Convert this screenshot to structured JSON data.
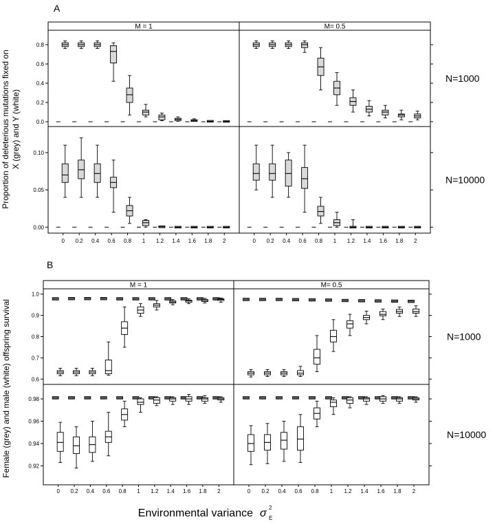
{
  "panels": {
    "a": {
      "letter": "A",
      "ylabel_line1": "Proportion of deleterious mutations fixed on",
      "ylabel_line2": "X (grey) and Y (white)"
    },
    "b": {
      "letter": "B",
      "ylabel": "Female (grey) and male (white) offspring survival"
    }
  },
  "x_axis": {
    "label": "Environmental variance",
    "symbol": "σ",
    "sub": "E",
    "sup": "2"
  },
  "chart_data": [
    {
      "type": "box",
      "panel": "A",
      "description_free": true,
      "strips": [
        "M = 1",
        "M= 0.5"
      ],
      "rows": [
        "N=1000",
        "N=10000"
      ],
      "categories": [
        "0",
        "0.2",
        "0.4",
        "0.6",
        "0.8",
        "1",
        "1.2",
        "1.4",
        "1.6",
        "1.8",
        "2"
      ],
      "y_ticks": {
        "N=1000": [
          "0.0",
          "0.2",
          "0.4",
          "0.6",
          "0.8"
        ],
        "N=10000": [
          "0.00",
          "0.05",
          "0.10"
        ]
      },
      "ylim": {
        "N=1000": [
          -0.05,
          0.95
        ],
        "N=10000": [
          -0.008,
          0.135
        ]
      },
      "facets": [
        {
          "strip": "M = 1",
          "row": "N=1000",
          "grey": [
            [
              0.76,
              0.78,
              0.8,
              0.82,
              0.84
            ],
            [
              0.76,
              0.78,
              0.8,
              0.82,
              0.84
            ],
            [
              0.76,
              0.78,
              0.8,
              0.82,
              0.84
            ],
            [
              0.42,
              0.61,
              0.73,
              0.79,
              0.82
            ],
            [
              0.07,
              0.2,
              0.28,
              0.35,
              0.48
            ],
            [
              0.05,
              0.07,
              0.1,
              0.12,
              0.18
            ],
            [
              0.01,
              0.02,
              0.05,
              0.07,
              0.09
            ],
            [
              0.005,
              0.012,
              0.025,
              0.035,
              0.05
            ],
            [
              0.003,
              0.006,
              0.012,
              0.018,
              0.03
            ],
            [
              0.0,
              0.002,
              0.004,
              0.007,
              0.01
            ],
            [
              0.0,
              0.001,
              0.003,
              0.005,
              0.008
            ]
          ],
          "white": [
            0,
            0,
            0,
            0,
            0,
            0,
            0,
            0,
            0,
            0,
            0
          ]
        },
        {
          "strip": "M= 0.5",
          "row": "N=1000",
          "grey": [
            [
              0.76,
              0.78,
              0.8,
              0.82,
              0.84
            ],
            [
              0.76,
              0.78,
              0.8,
              0.82,
              0.84
            ],
            [
              0.76,
              0.78,
              0.8,
              0.82,
              0.84
            ],
            [
              0.72,
              0.77,
              0.8,
              0.82,
              0.84
            ],
            [
              0.33,
              0.48,
              0.57,
              0.66,
              0.77
            ],
            [
              0.17,
              0.28,
              0.35,
              0.42,
              0.51
            ],
            [
              0.1,
              0.17,
              0.21,
              0.25,
              0.33
            ],
            [
              0.06,
              0.1,
              0.13,
              0.16,
              0.22
            ],
            [
              0.04,
              0.07,
              0.1,
              0.12,
              0.17
            ],
            [
              0.02,
              0.05,
              0.07,
              0.08,
              0.12
            ],
            [
              0.02,
              0.04,
              0.06,
              0.08,
              0.11
            ]
          ],
          "white": [
            0,
            0,
            0,
            0,
            0,
            0,
            0,
            0,
            0,
            0,
            0
          ]
        },
        {
          "strip": "M = 1",
          "row": "N=10000",
          "grey": [
            [
              0.04,
              0.06,
              0.07,
              0.085,
              0.11
            ],
            [
              0.04,
              0.065,
              0.077,
              0.09,
              0.12
            ],
            [
              0.04,
              0.06,
              0.072,
              0.085,
              0.11
            ],
            [
              0.02,
              0.053,
              0.06,
              0.067,
              0.09
            ],
            [
              0.005,
              0.015,
              0.022,
              0.029,
              0.04
            ],
            [
              0.0,
              0.002,
              0.006,
              0.009,
              0.01
            ],
            [
              0.0,
              0.0,
              0.0005,
              0.001,
              0.001
            ],
            [
              0,
              0,
              0,
              0,
              0
            ],
            [
              0,
              0,
              0,
              0,
              0
            ],
            [
              0,
              0,
              0,
              0,
              0
            ],
            [
              0,
              0,
              0,
              0,
              0
            ]
          ],
          "white": [
            0,
            0,
            0,
            0,
            0,
            0,
            0,
            0,
            0,
            0,
            0
          ]
        },
        {
          "strip": "M= 0.5",
          "row": "N=10000",
          "grey": [
            [
              0.05,
              0.063,
              0.072,
              0.085,
              0.11
            ],
            [
              0.04,
              0.063,
              0.072,
              0.085,
              0.11
            ],
            [
              0.04,
              0.055,
              0.072,
              0.09,
              0.1
            ],
            [
              0.02,
              0.052,
              0.065,
              0.08,
              0.11
            ],
            [
              0.005,
              0.015,
              0.021,
              0.028,
              0.04
            ],
            [
              0.0,
              0.002,
              0.006,
              0.01,
              0.02
            ],
            [
              0.0,
              0.0,
              0.0,
              0.0,
              0.01
            ],
            [
              0,
              0,
              0,
              0,
              0
            ],
            [
              0,
              0,
              0,
              0,
              0
            ],
            [
              0,
              0,
              0,
              0,
              0
            ],
            [
              0,
              0,
              0,
              0,
              0
            ]
          ],
          "white": [
            0,
            0,
            0,
            0,
            0,
            0,
            0,
            0,
            0,
            0,
            0
          ]
        }
      ]
    },
    {
      "type": "box",
      "panel": "B",
      "strips": [
        "M = 1",
        "M= 0.5"
      ],
      "rows": [
        "N=1000",
        "N=10000"
      ],
      "categories": [
        "0",
        "0.2",
        "0.4",
        "0.6",
        "0.8",
        "1",
        "1.2",
        "1.4",
        "1.6",
        "1.8",
        "2"
      ],
      "y_ticks": {
        "N=1000": [
          "0.6",
          "0.7",
          "0.8",
          "0.9",
          "1.0"
        ],
        "N=10000": [
          "0.92",
          "0.94",
          "0.96",
          "0.98"
        ]
      },
      "ylim": {
        "N=1000": [
          0.575,
          1.025
        ],
        "N=10000": [
          0.903,
          0.993
        ]
      },
      "facets": [
        {
          "strip": "M = 1",
          "row": "N=1000",
          "grey": [
            0.978,
            0.979,
            0.979,
            0.979,
            0.978,
            0.978,
            0.978,
            0.978,
            0.978,
            0.978,
            0.978
          ],
          "white": [
            [
              0.616,
              0.625,
              0.633,
              0.64,
              0.651
            ],
            [
              0.616,
              0.625,
              0.633,
              0.64,
              0.651
            ],
            [
              0.616,
              0.625,
              0.633,
              0.64,
              0.651
            ],
            [
              0.618,
              0.625,
              0.64,
              0.69,
              0.775
            ],
            [
              0.75,
              0.81,
              0.84,
              0.87,
              0.94
            ],
            [
              0.895,
              0.91,
              0.925,
              0.94,
              0.955
            ],
            [
              0.925,
              0.94,
              0.948,
              0.955,
              0.97
            ],
            [
              0.95,
              0.958,
              0.963,
              0.968,
              0.975
            ],
            [
              0.955,
              0.962,
              0.968,
              0.972,
              0.978
            ],
            [
              0.958,
              0.965,
              0.97,
              0.975,
              0.98
            ],
            [
              0.962,
              0.97,
              0.975,
              0.978,
              0.982
            ]
          ]
        },
        {
          "strip": "M= 0.5",
          "row": "N=1000",
          "grey": [
            0.975,
            0.975,
            0.975,
            0.974,
            0.973,
            0.972,
            0.97,
            0.969,
            0.968,
            0.967,
            0.966
          ],
          "white": [
            [
              0.61,
              0.62,
              0.628,
              0.635,
              0.645
            ],
            [
              0.612,
              0.62,
              0.628,
              0.635,
              0.645
            ],
            [
              0.612,
              0.62,
              0.628,
              0.635,
              0.645
            ],
            [
              0.612,
              0.62,
              0.628,
              0.64,
              0.66
            ],
            [
              0.635,
              0.67,
              0.7,
              0.74,
              0.805
            ],
            [
              0.73,
              0.775,
              0.8,
              0.83,
              0.88
            ],
            [
              0.805,
              0.84,
              0.86,
              0.875,
              0.905
            ],
            [
              0.86,
              0.88,
              0.89,
              0.9,
              0.92
            ],
            [
              0.88,
              0.898,
              0.905,
              0.918,
              0.93
            ],
            [
              0.895,
              0.91,
              0.918,
              0.928,
              0.94
            ],
            [
              0.895,
              0.91,
              0.918,
              0.93,
              0.945
            ]
          ]
        },
        {
          "strip": "M = 1",
          "row": "N=10000",
          "grey": [
            0.981,
            0.981,
            0.981,
            0.981,
            0.981,
            0.981,
            0.981,
            0.981,
            0.981,
            0.981,
            0.981
          ],
          "white": [
            [
              0.923,
              0.933,
              0.941,
              0.95,
              0.959
            ],
            [
              0.918,
              0.931,
              0.938,
              0.946,
              0.955
            ],
            [
              0.924,
              0.932,
              0.939,
              0.946,
              0.96
            ],
            [
              0.929,
              0.941,
              0.946,
              0.951,
              0.968
            ],
            [
              0.955,
              0.961,
              0.966,
              0.971,
              0.978
            ],
            [
              0.968,
              0.975,
              0.977,
              0.98,
              0.981
            ],
            [
              0.974,
              0.976,
              0.979,
              0.981,
              0.982
            ],
            [
              0.975,
              0.978,
              0.98,
              0.981,
              0.982
            ],
            [
              0.975,
              0.978,
              0.98,
              0.982,
              0.984
            ],
            [
              0.976,
              0.978,
              0.98,
              0.981,
              0.983
            ],
            [
              0.977,
              0.979,
              0.98,
              0.981,
              0.982
            ]
          ]
        },
        {
          "strip": "M= 0.5",
          "row": "N=10000",
          "grey": [
            0.981,
            0.981,
            0.981,
            0.981,
            0.981,
            0.981,
            0.981,
            0.981,
            0.981,
            0.981,
            0.981
          ],
          "white": [
            [
              0.921,
              0.933,
              0.94,
              0.948,
              0.956
            ],
            [
              0.922,
              0.934,
              0.941,
              0.948,
              0.958
            ],
            [
              0.924,
              0.935,
              0.943,
              0.95,
              0.96
            ],
            [
              0.923,
              0.934,
              0.944,
              0.955,
              0.966
            ],
            [
              0.955,
              0.962,
              0.967,
              0.972,
              0.978
            ],
            [
              0.966,
              0.973,
              0.977,
              0.979,
              0.981
            ],
            [
              0.972,
              0.976,
              0.979,
              0.981,
              0.982
            ],
            [
              0.975,
              0.978,
              0.98,
              0.981,
              0.982
            ],
            [
              0.976,
              0.978,
              0.98,
              0.982,
              0.983
            ],
            [
              0.976,
              0.978,
              0.98,
              0.981,
              0.982
            ],
            [
              0.977,
              0.979,
              0.98,
              0.981,
              0.982
            ]
          ]
        }
      ]
    }
  ]
}
